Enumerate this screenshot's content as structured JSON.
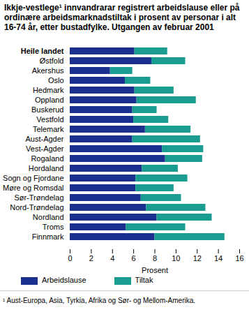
{
  "chart_data": {
    "type": "bar",
    "orientation": "horizontal",
    "stacked": true,
    "title": "Ikkje-vestlege¹ innvandrarar registrert arbeidslause eller på ordinære arbeidsmarknadstiltak i prosent av personar  i alt 16-74 år, etter bustadfylke. Utgangen av februar 2001",
    "footnote": "¹ Aust-Europa, Asia, Tyrkia, Afrika og Sør- og Mellom-Amerika.",
    "x_label": "Prosent",
    "categories": [
      "Heile landet",
      "Østfold",
      "Akershus",
      "Oslo",
      "Hedmark",
      "Oppland",
      "Buskerud",
      "Vestfold",
      "Telemark",
      "Aust-Agder",
      "Vest-Agder",
      "Rogaland",
      "Hordaland",
      "Sogn og Fjordane",
      "Møre og Romsdal",
      "Sør-Trøndelag",
      "Nord-Trøndelag",
      "Nordland",
      "Troms",
      "Finnmark"
    ],
    "series": [
      {
        "name": "Arbeidslause",
        "color": "#1b2f8f",
        "values": [
          6.1,
          7.7,
          3.8,
          5.2,
          6.1,
          6.3,
          5.9,
          6.0,
          7.1,
          5.9,
          8.7,
          9.0,
          6.8,
          6.2,
          6.2,
          6.7,
          7.2,
          8.2,
          5.3,
          8.0
        ]
      },
      {
        "name": "Tiltak",
        "color": "#1a9c90",
        "values": [
          3.1,
          3.2,
          2.1,
          2.4,
          3.7,
          5.6,
          2.3,
          3.3,
          4.3,
          6.4,
          3.9,
          3.5,
          3.4,
          4.9,
          3.6,
          3.8,
          5.6,
          5.2,
          5.6,
          6.6
        ]
      }
    ],
    "xlim": [
      0,
      16
    ],
    "xticks": [
      0,
      2,
      4,
      6,
      8,
      10,
      12,
      14,
      16
    ],
    "grid": false
  }
}
